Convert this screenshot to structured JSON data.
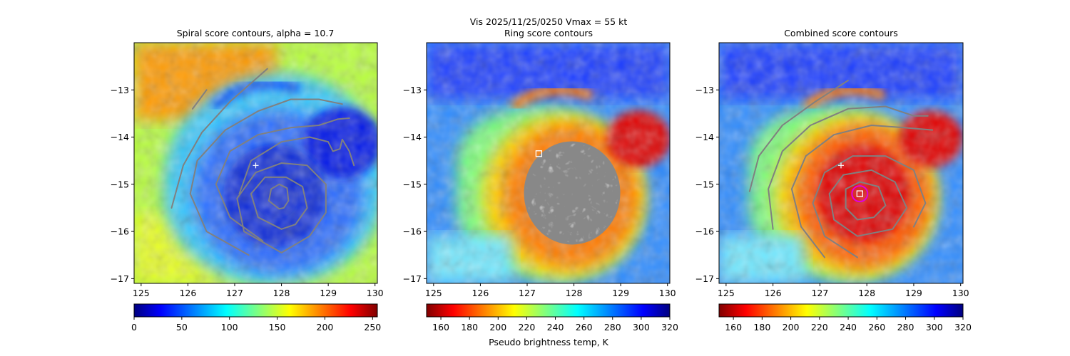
{
  "figure": {
    "suptitle_line1": "Vis  2025/11/25/0250    Vmax = 55 kt"
  },
  "chart_data": [
    {
      "type": "heatmap",
      "title": "Spiral score contours, alpha = 10.7",
      "xlim": [
        124.85,
        130.05
      ],
      "ylim": [
        -17.1,
        -12.0
      ],
      "xticks": [
        125,
        126,
        127,
        128,
        129,
        130
      ],
      "yticks": [
        -13,
        -14,
        -15,
        -16,
        -17
      ],
      "colorbar": {
        "colormap": "jet",
        "range": [
          0,
          255
        ],
        "ticks": [
          0,
          50,
          100,
          150,
          200,
          250
        ],
        "label": ""
      },
      "markers": [
        {
          "type": "plus",
          "x": 127.45,
          "y": -14.6,
          "color": "#ffffff"
        }
      ],
      "contours": [
        {
          "color": "#808080",
          "points": [
            [
              126.1,
              -13.4
            ],
            [
              126.4,
              -13.0
            ]
          ]
        },
        {
          "color": "#808080",
          "points": [
            [
              125.65,
              -15.5
            ],
            [
              125.9,
              -14.6
            ],
            [
              126.3,
              -13.9
            ],
            [
              126.9,
              -13.25
            ],
            [
              127.7,
              -12.55
            ]
          ]
        },
        {
          "color": "#808080",
          "points": [
            [
              127.3,
              -16.5
            ],
            [
              126.4,
              -16.0
            ],
            [
              126.05,
              -15.2
            ],
            [
              126.2,
              -14.5
            ],
            [
              126.8,
              -13.85
            ],
            [
              127.5,
              -13.45
            ],
            [
              128.2,
              -13.2
            ],
            [
              128.8,
              -13.2
            ],
            [
              129.3,
              -13.3
            ]
          ]
        },
        {
          "color": "#808080",
          "points": [
            [
              127.6,
              -16.2
            ],
            [
              126.9,
              -15.7
            ],
            [
              126.6,
              -15.0
            ],
            [
              126.9,
              -14.3
            ],
            [
              127.5,
              -13.95
            ],
            [
              128.2,
              -13.8
            ],
            [
              128.8,
              -13.75
            ],
            [
              129.2,
              -13.62
            ],
            [
              129.45,
              -13.6
            ]
          ]
        },
        {
          "color": "#808080",
          "points": [
            [
              127.1,
              -15.2
            ],
            [
              127.35,
              -14.5
            ],
            [
              128.0,
              -14.1
            ],
            [
              128.6,
              -14.0
            ],
            [
              129.0,
              -14.1
            ],
            [
              129.1,
              -14.3
            ],
            [
              129.25,
              -14.25
            ],
            [
              129.3,
              -14.05
            ],
            [
              129.45,
              -14.3
            ],
            [
              129.55,
              -14.6
            ]
          ]
        },
        {
          "color": "#808080",
          "points": [
            [
              128.0,
              -16.45
            ],
            [
              127.2,
              -16.0
            ],
            [
              127.05,
              -15.3
            ],
            [
              127.45,
              -14.75
            ],
            [
              128.0,
              -14.55
            ],
            [
              128.55,
              -14.6
            ],
            [
              128.95,
              -15.0
            ],
            [
              128.95,
              -15.6
            ],
            [
              128.6,
              -16.1
            ],
            [
              128.0,
              -16.45
            ]
          ]
        },
        {
          "color": "#808080",
          "points": [
            [
              128.0,
              -15.95
            ],
            [
              127.5,
              -15.7
            ],
            [
              127.35,
              -15.2
            ],
            [
              127.65,
              -14.85
            ],
            [
              128.1,
              -14.85
            ],
            [
              128.45,
              -15.05
            ],
            [
              128.55,
              -15.5
            ],
            [
              128.3,
              -15.85
            ],
            [
              128.0,
              -15.95
            ]
          ]
        },
        {
          "color": "#808080",
          "points": [
            [
              127.95,
              -15.52
            ],
            [
              127.73,
              -15.35
            ],
            [
              127.78,
              -15.1
            ],
            [
              127.95,
              -15.0
            ],
            [
              128.12,
              -15.08
            ],
            [
              128.15,
              -15.35
            ],
            [
              128.05,
              -15.5
            ],
            [
              127.95,
              -15.52
            ]
          ]
        }
      ]
    },
    {
      "type": "heatmap",
      "title": "Ring score contours",
      "xlim": [
        124.85,
        130.05
      ],
      "ylim": [
        -17.1,
        -12.0
      ],
      "xticks": [
        125,
        126,
        127,
        128,
        129,
        130
      ],
      "yticks": [
        -13,
        -14,
        -15,
        -16,
        -17
      ],
      "colorbar": {
        "colormap": "jet_r",
        "range": [
          150,
          320
        ],
        "ticks": [
          160,
          180,
          200,
          220,
          240,
          260,
          280,
          300,
          320
        ],
        "label": "Pseudo brightness temp, K"
      },
      "markers": [
        {
          "type": "square",
          "x": 127.25,
          "y": -14.35,
          "color": "#ffffff"
        }
      ],
      "ring_region": {
        "color": "#888888",
        "center": [
          128.2,
          -15.2
        ],
        "radius_x": 0.95,
        "radius_y": 1.28
      }
    },
    {
      "type": "heatmap",
      "title": "Combined score contours",
      "xlim": [
        124.85,
        130.05
      ],
      "ylim": [
        -17.1,
        -12.0
      ],
      "xticks": [
        125,
        126,
        127,
        128,
        129,
        130
      ],
      "yticks": [
        -13,
        -14,
        -15,
        -16,
        -17
      ],
      "colorbar": {
        "colormap": "jet_r",
        "range": [
          150,
          320
        ],
        "ticks": [
          160,
          180,
          200,
          220,
          240,
          260,
          280,
          300,
          320
        ],
        "label": ""
      },
      "markers": [
        {
          "type": "plus",
          "x": 127.45,
          "y": -14.6,
          "color": "#ffffff"
        },
        {
          "type": "square",
          "x": 127.85,
          "y": -15.2,
          "color": "#ffffff"
        },
        {
          "type": "circle",
          "x": 127.85,
          "y": -15.2,
          "color": "#e000e0"
        }
      ],
      "contours": [
        {
          "color": "#808080",
          "points": [
            [
              125.5,
              -15.15
            ],
            [
              125.7,
              -14.4
            ],
            [
              126.2,
              -13.75
            ],
            [
              126.9,
              -13.25
            ],
            [
              127.6,
              -12.8
            ]
          ]
        },
        {
          "color": "#808080",
          "points": [
            [
              126.0,
              -15.95
            ],
            [
              125.9,
              -15.1
            ],
            [
              126.2,
              -14.3
            ],
            [
              126.8,
              -13.75
            ],
            [
              127.6,
              -13.4
            ],
            [
              128.4,
              -13.35
            ],
            [
              129.0,
              -13.55
            ],
            [
              129.3,
              -13.55
            ]
          ]
        },
        {
          "color": "#808080",
          "points": [
            [
              127.1,
              -16.55
            ],
            [
              126.6,
              -15.9
            ],
            [
              126.4,
              -15.1
            ],
            [
              126.7,
              -14.4
            ],
            [
              127.3,
              -13.95
            ],
            [
              128.1,
              -13.75
            ],
            [
              128.8,
              -13.8
            ],
            [
              129.4,
              -13.85
            ]
          ]
        },
        {
          "color": "#808080",
          "points": [
            [
              127.8,
              -16.55
            ],
            [
              127.1,
              -16.1
            ],
            [
              126.85,
              -15.4
            ],
            [
              127.1,
              -14.75
            ],
            [
              127.7,
              -14.4
            ],
            [
              128.4,
              -14.4
            ],
            [
              129.0,
              -14.7
            ],
            [
              129.25,
              -15.4
            ],
            [
              129.0,
              -15.9
            ]
          ]
        },
        {
          "color": "#808080",
          "points": [
            [
              127.8,
              -16.1
            ],
            [
              127.3,
              -15.75
            ],
            [
              127.2,
              -15.2
            ],
            [
              127.5,
              -14.8
            ],
            [
              128.1,
              -14.7
            ],
            [
              128.6,
              -14.95
            ],
            [
              128.85,
              -15.5
            ],
            [
              128.55,
              -15.95
            ],
            [
              127.8,
              -16.1
            ]
          ]
        },
        {
          "color": "#808080",
          "points": [
            [
              127.8,
              -15.75
            ],
            [
              127.55,
              -15.5
            ],
            [
              127.55,
              -15.1
            ],
            [
              127.85,
              -14.95
            ],
            [
              128.25,
              -15.05
            ],
            [
              128.4,
              -15.45
            ],
            [
              128.15,
              -15.7
            ],
            [
              127.8,
              -15.75
            ]
          ]
        }
      ]
    }
  ]
}
